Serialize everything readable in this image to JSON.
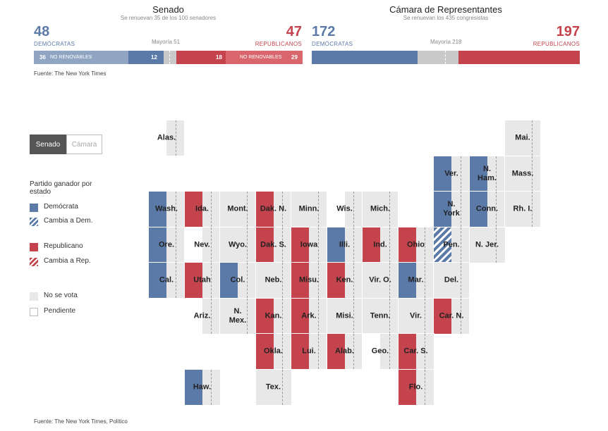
{
  "colors": {
    "dem": "#5b7aa8",
    "rep": "#c4434d",
    "dem_light": "#8fa5c2",
    "rep_light": "#d9666d",
    "gray": "#c9c9c9",
    "none": "#e8e8e8",
    "pending": "#ffffff"
  },
  "senate": {
    "title": "Senado",
    "subtitle": "Se renuevan 35 de los 100 senadores",
    "dem_total": "48",
    "dem_label": "DEMÓCRATAS",
    "rep_total": "47",
    "rep_label": "REPUBLICANOS",
    "majority": "Mayoría 51",
    "bar": {
      "dem_not_renewable": "36",
      "dem_not_renewable_label": "NO RENOVABLES",
      "dem_won": "12",
      "rep_won": "18",
      "rep_not_renewable_label": "NO RENOVABLES",
      "rep_not_renewable": "29"
    }
  },
  "house": {
    "title": "Cámara de Representantes",
    "subtitle": "Se renuevan los 435 congresistas",
    "dem_total": "172",
    "dem_label": "DEMÓCRATAS",
    "rep_total": "197",
    "rep_label": "REPUBLICANOS",
    "majority": "Mayoría 218"
  },
  "source_top": "Fuente: The New York Times",
  "source_bottom": "Fuente: The New York Times, Politico",
  "toggle": {
    "senate": "Senado",
    "house": "Cámara",
    "active": "senate"
  },
  "legend": {
    "title": "Partido ganador por estado",
    "items": [
      {
        "label": "Demócrata",
        "kind": "dem"
      },
      {
        "label": "Cambia a Dem.",
        "kind": "dem-flip"
      },
      {
        "label": "Republicano",
        "kind": "rep"
      },
      {
        "label": "Cambia a Rep.",
        "kind": "rep-flip"
      },
      {
        "label": "No se vota",
        "kind": "none"
      },
      {
        "label": "Pendiente",
        "kind": "pending"
      }
    ]
  },
  "chart_data": {
    "type": "table",
    "states": [
      {
        "name": "Alas.",
        "col": 0,
        "row": 0,
        "status": "pending"
      },
      {
        "name": "Mai.",
        "col": 10,
        "row": 0,
        "status": "none"
      },
      {
        "name": "Ver.",
        "col": 8,
        "row": 1,
        "status": "dem"
      },
      {
        "name": "N.\nHam.",
        "col": 9,
        "row": 1,
        "status": "dem"
      },
      {
        "name": "Mass.",
        "col": 10,
        "row": 1,
        "status": "none"
      },
      {
        "name": "Wash.",
        "col": 0,
        "row": 2,
        "status": "dem"
      },
      {
        "name": "Ida.",
        "col": 1,
        "row": 2,
        "status": "rep"
      },
      {
        "name": "Mont.",
        "col": 2,
        "row": 2,
        "status": "none"
      },
      {
        "name": "Dak. N.",
        "col": 3,
        "row": 2,
        "status": "rep"
      },
      {
        "name": "Minn.",
        "col": 4,
        "row": 2,
        "status": "none"
      },
      {
        "name": "Wis.",
        "col": 5,
        "row": 2,
        "status": "pending"
      },
      {
        "name": "Mich.",
        "col": 6,
        "row": 2,
        "status": "none"
      },
      {
        "name": "N.\nYork",
        "col": 8,
        "row": 2,
        "status": "dem"
      },
      {
        "name": "Conn.",
        "col": 9,
        "row": 2,
        "status": "dem"
      },
      {
        "name": "Rh. I.",
        "col": 10,
        "row": 2,
        "status": "none"
      },
      {
        "name": "Ore.",
        "col": 0,
        "row": 3,
        "status": "dem"
      },
      {
        "name": "Nev.",
        "col": 1,
        "row": 3,
        "status": "pending"
      },
      {
        "name": "Wyo.",
        "col": 2,
        "row": 3,
        "status": "none"
      },
      {
        "name": "Dak. S.",
        "col": 3,
        "row": 3,
        "status": "rep"
      },
      {
        "name": "Iowa",
        "col": 4,
        "row": 3,
        "status": "rep"
      },
      {
        "name": "Illi.",
        "col": 5,
        "row": 3,
        "status": "dem"
      },
      {
        "name": "Ind.",
        "col": 6,
        "row": 3,
        "status": "rep"
      },
      {
        "name": "Ohio",
        "col": 7,
        "row": 3,
        "status": "rep"
      },
      {
        "name": "Pen.",
        "col": 8,
        "row": 3,
        "status": "dem-flip"
      },
      {
        "name": "N. Jer.",
        "col": 9,
        "row": 3,
        "status": "none"
      },
      {
        "name": "Cal.",
        "col": 0,
        "row": 4,
        "status": "dem"
      },
      {
        "name": "Utah",
        "col": 1,
        "row": 4,
        "status": "rep"
      },
      {
        "name": "Col.",
        "col": 2,
        "row": 4,
        "status": "dem"
      },
      {
        "name": "Neb.",
        "col": 3,
        "row": 4,
        "status": "none"
      },
      {
        "name": "Misu.",
        "col": 4,
        "row": 4,
        "status": "rep"
      },
      {
        "name": "Ken.",
        "col": 5,
        "row": 4,
        "status": "rep"
      },
      {
        "name": "Vir. O.",
        "col": 6,
        "row": 4,
        "status": "none"
      },
      {
        "name": "Mar.",
        "col": 7,
        "row": 4,
        "status": "dem"
      },
      {
        "name": "Del.",
        "col": 8,
        "row": 4,
        "status": "none"
      },
      {
        "name": "Ariz.",
        "col": 1,
        "row": 5,
        "status": "pending"
      },
      {
        "name": "N.\nMex.",
        "col": 2,
        "row": 5,
        "status": "none"
      },
      {
        "name": "Kan.",
        "col": 3,
        "row": 5,
        "status": "rep"
      },
      {
        "name": "Ark.",
        "col": 4,
        "row": 5,
        "status": "rep"
      },
      {
        "name": "Misi.",
        "col": 5,
        "row": 5,
        "status": "none"
      },
      {
        "name": "Tenn.",
        "col": 6,
        "row": 5,
        "status": "none"
      },
      {
        "name": "Vir.",
        "col": 7,
        "row": 5,
        "status": "none"
      },
      {
        "name": "Car. N.",
        "col": 8,
        "row": 5,
        "status": "rep"
      },
      {
        "name": "Okla.",
        "col": 3,
        "row": 6,
        "status": "rep"
      },
      {
        "name": "Lui.",
        "col": 4,
        "row": 6,
        "status": "rep"
      },
      {
        "name": "Alab.",
        "col": 5,
        "row": 6,
        "status": "rep"
      },
      {
        "name": "Geo.",
        "col": 6,
        "row": 6,
        "status": "pending"
      },
      {
        "name": "Car. S.",
        "col": 7,
        "row": 6,
        "status": "rep"
      },
      {
        "name": "Haw.",
        "col": 1,
        "row": 7,
        "status": "dem"
      },
      {
        "name": "Tex.",
        "col": 3,
        "row": 7,
        "status": "none"
      },
      {
        "name": "Flo.",
        "col": 7,
        "row": 7,
        "status": "rep"
      }
    ]
  }
}
